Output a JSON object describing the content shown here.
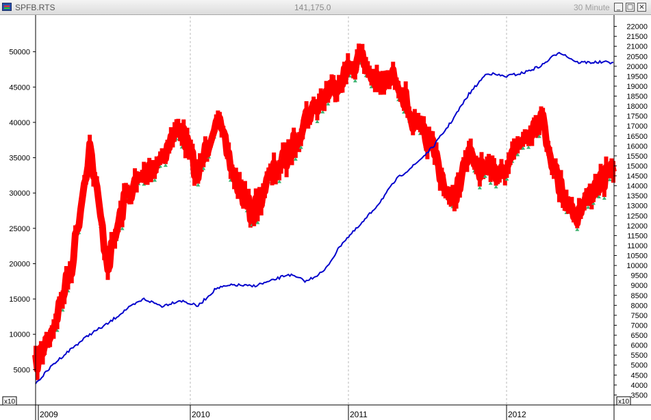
{
  "window": {
    "symbol": "SPFB.RTS",
    "price": "141,175.0",
    "timeframe": "30 Minute",
    "buttons": {
      "minimize": "_",
      "maximize": "□",
      "close": "×"
    }
  },
  "scale_marker": "x10",
  "colors": {
    "price": "#ff0000",
    "equity": "#0000cc",
    "buy_arrow": "#3cb371",
    "grid": "#b8b8b8",
    "axis": "#000000"
  },
  "chart_data": {
    "type": "line",
    "x": [
      "2009-01",
      "2009-03",
      "2009-05",
      "2009-06",
      "2009-07",
      "2009-09",
      "2009-10",
      "2009-12",
      "2010-01",
      "2010-02",
      "2010-04",
      "2010-05",
      "2010-06",
      "2010-08",
      "2010-10",
      "2010-11",
      "2010-12",
      "2011-01",
      "2011-02",
      "2011-04",
      "2011-06",
      "2011-07",
      "2011-08",
      "2011-09",
      "2011-10",
      "2011-11",
      "2011-12",
      "2012-01",
      "2012-03",
      "2012-05",
      "2012-06",
      "2012-07",
      "2012-08"
    ],
    "series": [
      {
        "axis": "left",
        "color": "#0000cc",
        "values": [
          3000,
          5800,
          8000,
          10000,
          11500,
          13500,
          15000,
          14000,
          14800,
          14000,
          16500,
          17000,
          16800,
          17500,
          18500,
          17500,
          19000,
          23000,
          25500,
          28500,
          32000,
          34000,
          36500,
          40000,
          44000,
          47000,
          46500,
          47000,
          48000,
          50000,
          48500,
          48500,
          48500
        ]
      },
      {
        "axis": "right",
        "color": "#ff0000",
        "values": [
          5000,
          7000,
          10000,
          16000,
          10000,
          13500,
          14500,
          15500,
          17000,
          14500,
          17500,
          14500,
          12500,
          14500,
          15500,
          17500,
          18500,
          19500,
          20500,
          19000,
          19500,
          17000,
          16000,
          13000,
          15500,
          14500,
          15000,
          16500,
          17500,
          14000,
          12500,
          14000,
          14700
        ]
      }
    ],
    "left_axis": {
      "ylim": [
        0,
        55000
      ],
      "ticks": [
        5000,
        10000,
        15000,
        20000,
        25000,
        30000,
        35000,
        40000,
        45000,
        50000
      ]
    },
    "right_axis": {
      "ylim": [
        3000,
        22500
      ],
      "ticks": [
        3500,
        4000,
        4500,
        5000,
        5500,
        6000,
        6500,
        7000,
        7500,
        8000,
        8500,
        9000,
        9500,
        10000,
        10500,
        11000,
        11500,
        12000,
        12500,
        13000,
        13500,
        14000,
        14500,
        15000,
        15500,
        16000,
        16500,
        17000,
        17500,
        18000,
        18500,
        19000,
        19500,
        20000,
        20500,
        21000,
        21500,
        22000
      ]
    },
    "x_axis": {
      "labels": [
        "2009",
        "2010",
        "2011",
        "2012"
      ]
    },
    "grid": "vertical-dashed-at-year-boundaries"
  }
}
